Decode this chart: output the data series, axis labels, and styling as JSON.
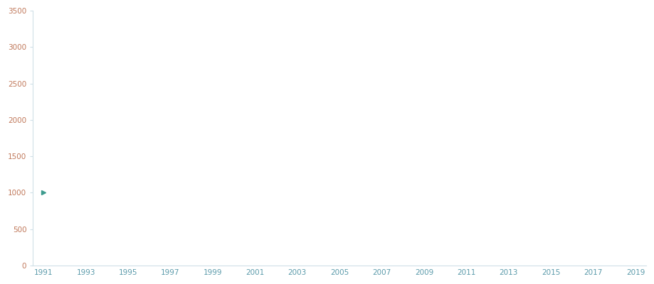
{
  "x_data": [
    1991
  ],
  "y_data": [
    1000
  ],
  "x_min": 1991,
  "x_max": 2019,
  "x_ticks": [
    1991,
    1993,
    1995,
    1997,
    1999,
    2001,
    2003,
    2005,
    2007,
    2009,
    2011,
    2013,
    2015,
    2017,
    2019
  ],
  "y_min": 0,
  "y_max": 3500,
  "y_ticks": [
    0,
    500,
    1000,
    1500,
    2000,
    2500,
    3000,
    3500
  ],
  "marker_color": "#3d9b8e",
  "marker_size": 5,
  "y_label_color": "#c0785a",
  "x_label_color": "#5a9aaa",
  "tick_color": "#b0c8d0",
  "background_color": "#ffffff",
  "spine_color": "#d0e0e8"
}
